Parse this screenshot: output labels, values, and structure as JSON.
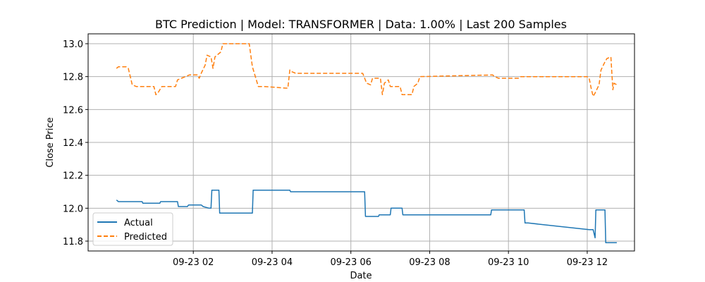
{
  "chart_data": {
    "type": "line",
    "title": "BTC Prediction | Model: TRANSFORMER | Data: 1.00% | Last 200 Samples",
    "xlabel": "Date",
    "ylabel": "Close Price",
    "x_unit": "hours since 09-23 00:00",
    "xlim": [
      -0.67,
      13.2
    ],
    "ylim": [
      11.74,
      13.06
    ],
    "x_ticks": [
      {
        "value": 2,
        "label": "09-23 02"
      },
      {
        "value": 4,
        "label": "09-23 04"
      },
      {
        "value": 6,
        "label": "09-23 06"
      },
      {
        "value": 8,
        "label": "09-23 08"
      },
      {
        "value": 10,
        "label": "09-23 10"
      },
      {
        "value": 12,
        "label": "09-23 12"
      }
    ],
    "y_ticks": [
      "11.8",
      "12.0",
      "12.2",
      "12.4",
      "12.6",
      "12.8",
      "13.0"
    ],
    "grid": true,
    "legend": "lower-left",
    "series": [
      {
        "name": "Actual",
        "color": "#1f77b4",
        "style": "solid",
        "points": [
          [
            0.05,
            12.05
          ],
          [
            0.1,
            12.04
          ],
          [
            0.7,
            12.04
          ],
          [
            0.72,
            12.03
          ],
          [
            1.15,
            12.03
          ],
          [
            1.17,
            12.04
          ],
          [
            1.6,
            12.04
          ],
          [
            1.62,
            12.01
          ],
          [
            1.85,
            12.01
          ],
          [
            1.88,
            12.02
          ],
          [
            2.2,
            12.02
          ],
          [
            2.25,
            12.01
          ],
          [
            2.4,
            12.0
          ],
          [
            2.45,
            12.0
          ],
          [
            2.47,
            12.11
          ],
          [
            2.65,
            12.11
          ],
          [
            2.67,
            11.97
          ],
          [
            3.5,
            11.97
          ],
          [
            3.52,
            12.11
          ],
          [
            4.45,
            12.11
          ],
          [
            4.47,
            12.1
          ],
          [
            6.35,
            12.1
          ],
          [
            6.37,
            11.95
          ],
          [
            6.7,
            11.95
          ],
          [
            6.72,
            11.96
          ],
          [
            7.0,
            11.96
          ],
          [
            7.02,
            12.0
          ],
          [
            7.3,
            12.0
          ],
          [
            7.32,
            11.96
          ],
          [
            9.55,
            11.96
          ],
          [
            9.57,
            11.99
          ],
          [
            10.4,
            11.99
          ],
          [
            10.42,
            11.91
          ],
          [
            10.5,
            11.91
          ],
          [
            12.05,
            11.87
          ],
          [
            12.15,
            11.87
          ],
          [
            12.2,
            11.82
          ],
          [
            12.22,
            11.99
          ],
          [
            12.45,
            11.99
          ],
          [
            12.47,
            11.79
          ],
          [
            12.75,
            11.79
          ]
        ]
      },
      {
        "name": "Predicted",
        "color": "#ff7f0e",
        "style": "dashed",
        "points": [
          [
            0.05,
            12.85
          ],
          [
            0.1,
            12.86
          ],
          [
            0.25,
            12.86
          ],
          [
            0.3,
            12.86
          ],
          [
            0.35,
            12.85
          ],
          [
            0.45,
            12.75
          ],
          [
            0.55,
            12.74
          ],
          [
            0.9,
            12.74
          ],
          [
            1.0,
            12.74
          ],
          [
            1.05,
            12.69
          ],
          [
            1.1,
            12.7
          ],
          [
            1.2,
            12.74
          ],
          [
            1.55,
            12.74
          ],
          [
            1.6,
            12.78
          ],
          [
            1.7,
            12.79
          ],
          [
            1.8,
            12.8
          ],
          [
            1.9,
            12.81
          ],
          [
            2.1,
            12.81
          ],
          [
            2.15,
            12.79
          ],
          [
            2.2,
            12.82
          ],
          [
            2.3,
            12.87
          ],
          [
            2.35,
            12.93
          ],
          [
            2.45,
            12.92
          ],
          [
            2.5,
            12.85
          ],
          [
            2.55,
            12.92
          ],
          [
            2.65,
            12.94
          ],
          [
            2.7,
            12.95
          ],
          [
            2.75,
            13.0
          ],
          [
            3.4,
            13.0
          ],
          [
            3.42,
            13.0
          ],
          [
            3.5,
            12.86
          ],
          [
            3.55,
            12.82
          ],
          [
            3.65,
            12.74
          ],
          [
            3.8,
            12.74
          ],
          [
            4.35,
            12.73
          ],
          [
            4.4,
            12.73
          ],
          [
            4.45,
            12.84
          ],
          [
            4.5,
            12.83
          ],
          [
            4.6,
            12.82
          ],
          [
            6.25,
            12.82
          ],
          [
            6.3,
            12.82
          ],
          [
            6.4,
            12.76
          ],
          [
            6.5,
            12.75
          ],
          [
            6.55,
            12.79
          ],
          [
            6.75,
            12.79
          ],
          [
            6.8,
            12.69
          ],
          [
            6.85,
            12.76
          ],
          [
            6.95,
            12.78
          ],
          [
            7.0,
            12.74
          ],
          [
            7.25,
            12.74
          ],
          [
            7.3,
            12.69
          ],
          [
            7.4,
            12.69
          ],
          [
            7.55,
            12.69
          ],
          [
            7.6,
            12.74
          ],
          [
            7.7,
            12.76
          ],
          [
            7.75,
            12.8
          ],
          [
            9.6,
            12.81
          ],
          [
            9.65,
            12.8
          ],
          [
            9.75,
            12.79
          ],
          [
            10.25,
            12.79
          ],
          [
            10.3,
            12.8
          ],
          [
            12.0,
            12.8
          ],
          [
            12.05,
            12.79
          ],
          [
            12.1,
            12.73
          ],
          [
            12.15,
            12.68
          ],
          [
            12.2,
            12.7
          ],
          [
            12.3,
            12.75
          ],
          [
            12.35,
            12.84
          ],
          [
            12.45,
            12.89
          ],
          [
            12.5,
            12.91
          ],
          [
            12.6,
            12.92
          ],
          [
            12.65,
            12.72
          ],
          [
            12.68,
            12.76
          ],
          [
            12.75,
            12.75
          ]
        ]
      }
    ]
  }
}
